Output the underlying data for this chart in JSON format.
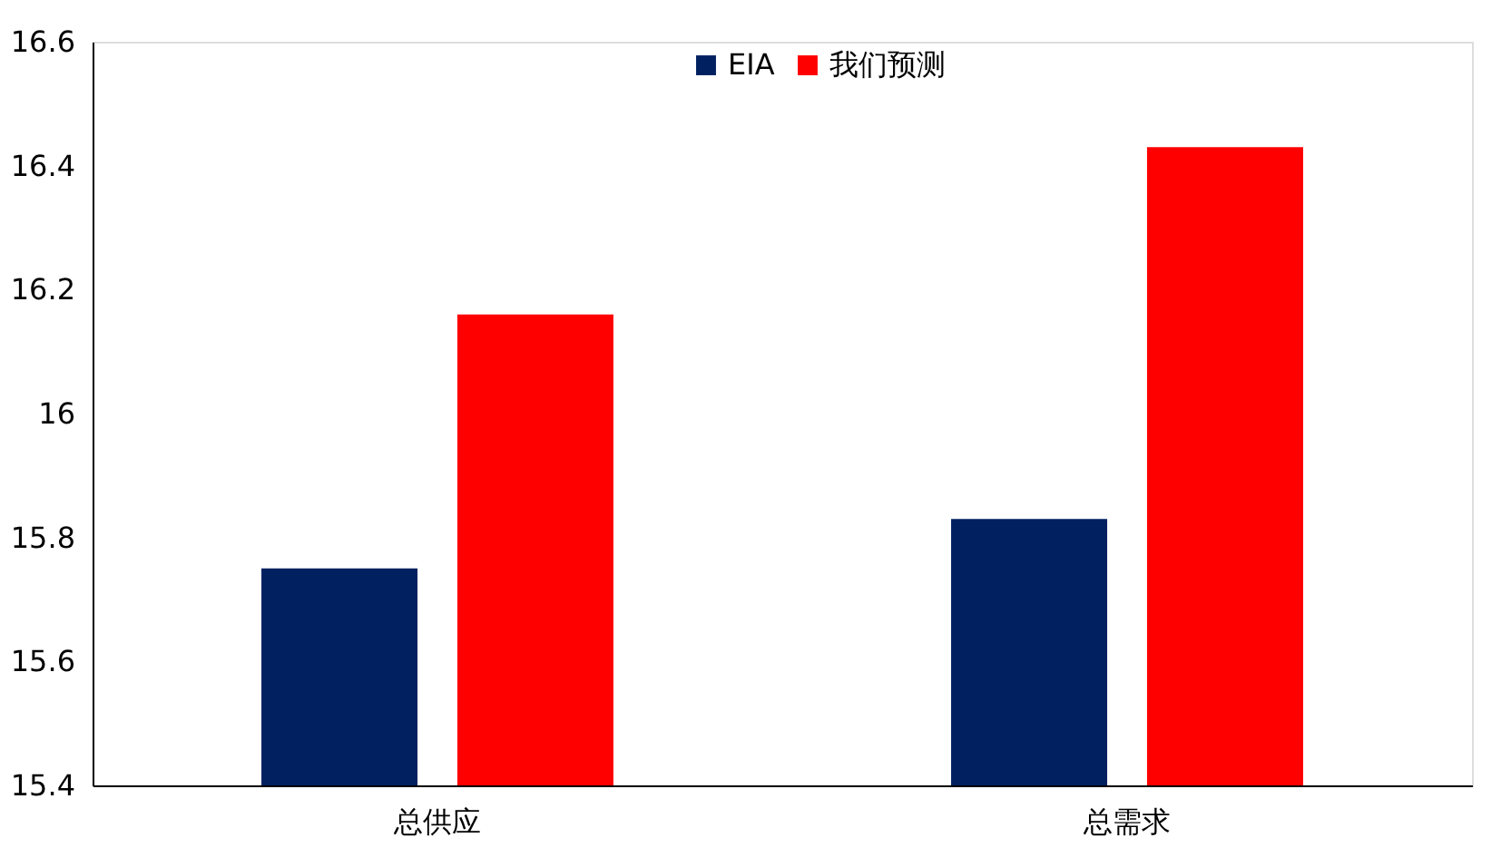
{
  "chart_data": {
    "type": "bar",
    "categories": [
      "总供应",
      "总需求"
    ],
    "series": [
      {
        "name": "EIA",
        "color": "#002060",
        "values": [
          15.75,
          15.83
        ]
      },
      {
        "name": "我们预测",
        "color": "#ff0000",
        "values": [
          16.16,
          16.43
        ]
      }
    ],
    "ylim": [
      15.4,
      16.6
    ],
    "yticks": [
      15.4,
      15.6,
      15.8,
      16,
      16.2,
      16.4,
      16.6
    ],
    "grid": false,
    "legend": "top"
  }
}
